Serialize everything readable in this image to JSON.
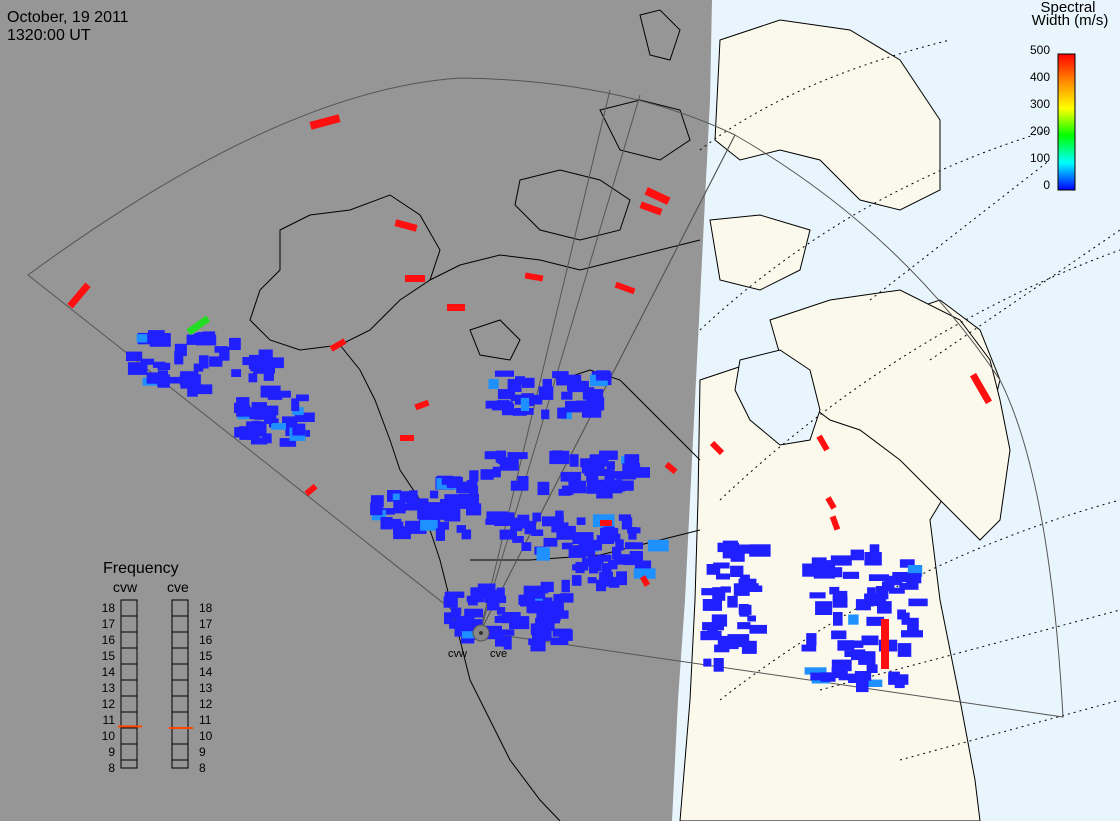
{
  "header": {
    "date": "October, 19 2011",
    "time": "1320:00 UT"
  },
  "colorbar": {
    "title_line1": "Spectral",
    "title_line2": "Width (m/s)",
    "ticks": [
      "500",
      "400",
      "300",
      "200",
      "100",
      "0"
    ],
    "range": [
      0,
      500
    ],
    "colors": [
      "#0000ff",
      "#00ffff",
      "#00ff00",
      "#ffff00",
      "#ff8800",
      "#ff0000"
    ]
  },
  "frequency_panel": {
    "title": "Frequency",
    "radar_left": "cvw",
    "radar_right": "cve",
    "scale": [
      "18",
      "17",
      "16",
      "15",
      "14",
      "13",
      "12",
      "11",
      "10",
      "9",
      "8"
    ],
    "cvw_value": 10.6,
    "cve_value": 10.5,
    "marker_color": "#ff4500"
  },
  "radar_sites": {
    "left": "cvw",
    "right": "cve"
  },
  "map_colors": {
    "night": "#969696",
    "day_land": "#fbf9ec",
    "day_ocean": "#e9f5fd",
    "outline": "#000000"
  }
}
